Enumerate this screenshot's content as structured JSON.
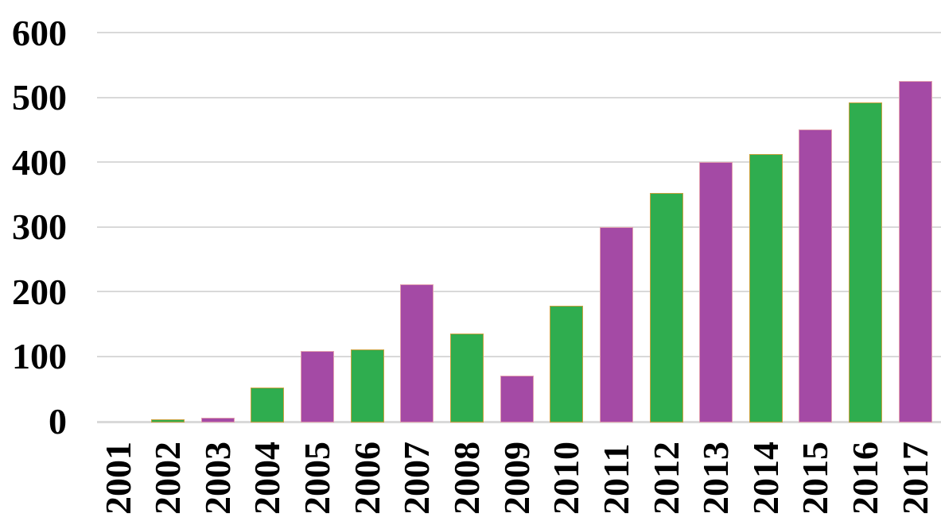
{
  "chart_data": {
    "type": "bar",
    "title": "",
    "xlabel": "",
    "ylabel": "",
    "categories": [
      "2001",
      "2002",
      "2003",
      "2004",
      "2005",
      "2006",
      "2007",
      "2008",
      "2009",
      "2010",
      "2011",
      "2012",
      "2013",
      "2014",
      "2015",
      "2016",
      "2017"
    ],
    "values": [
      0,
      3,
      6,
      52,
      108,
      111,
      212,
      135,
      70,
      178,
      300,
      352,
      400,
      413,
      450,
      492,
      525
    ],
    "bar_colors": [
      "purple",
      "green",
      "purple",
      "green",
      "purple",
      "green",
      "purple",
      "green",
      "purple",
      "green",
      "purple",
      "green",
      "purple",
      "green",
      "purple",
      "green",
      "purple"
    ],
    "y_ticks": [
      600,
      500,
      400,
      300,
      200,
      100,
      0
    ],
    "ylim": [
      0,
      600
    ],
    "grid": true,
    "legend": false,
    "colors": {
      "green_fill": "#2FAD4F",
      "green_border": "#C9A23F",
      "purple_fill": "#A44AA5",
      "purple_border": "#E2A0B0",
      "gridline": "#D9D9D9",
      "tick_text": "#000000",
      "background": "#FFFFFF"
    }
  }
}
